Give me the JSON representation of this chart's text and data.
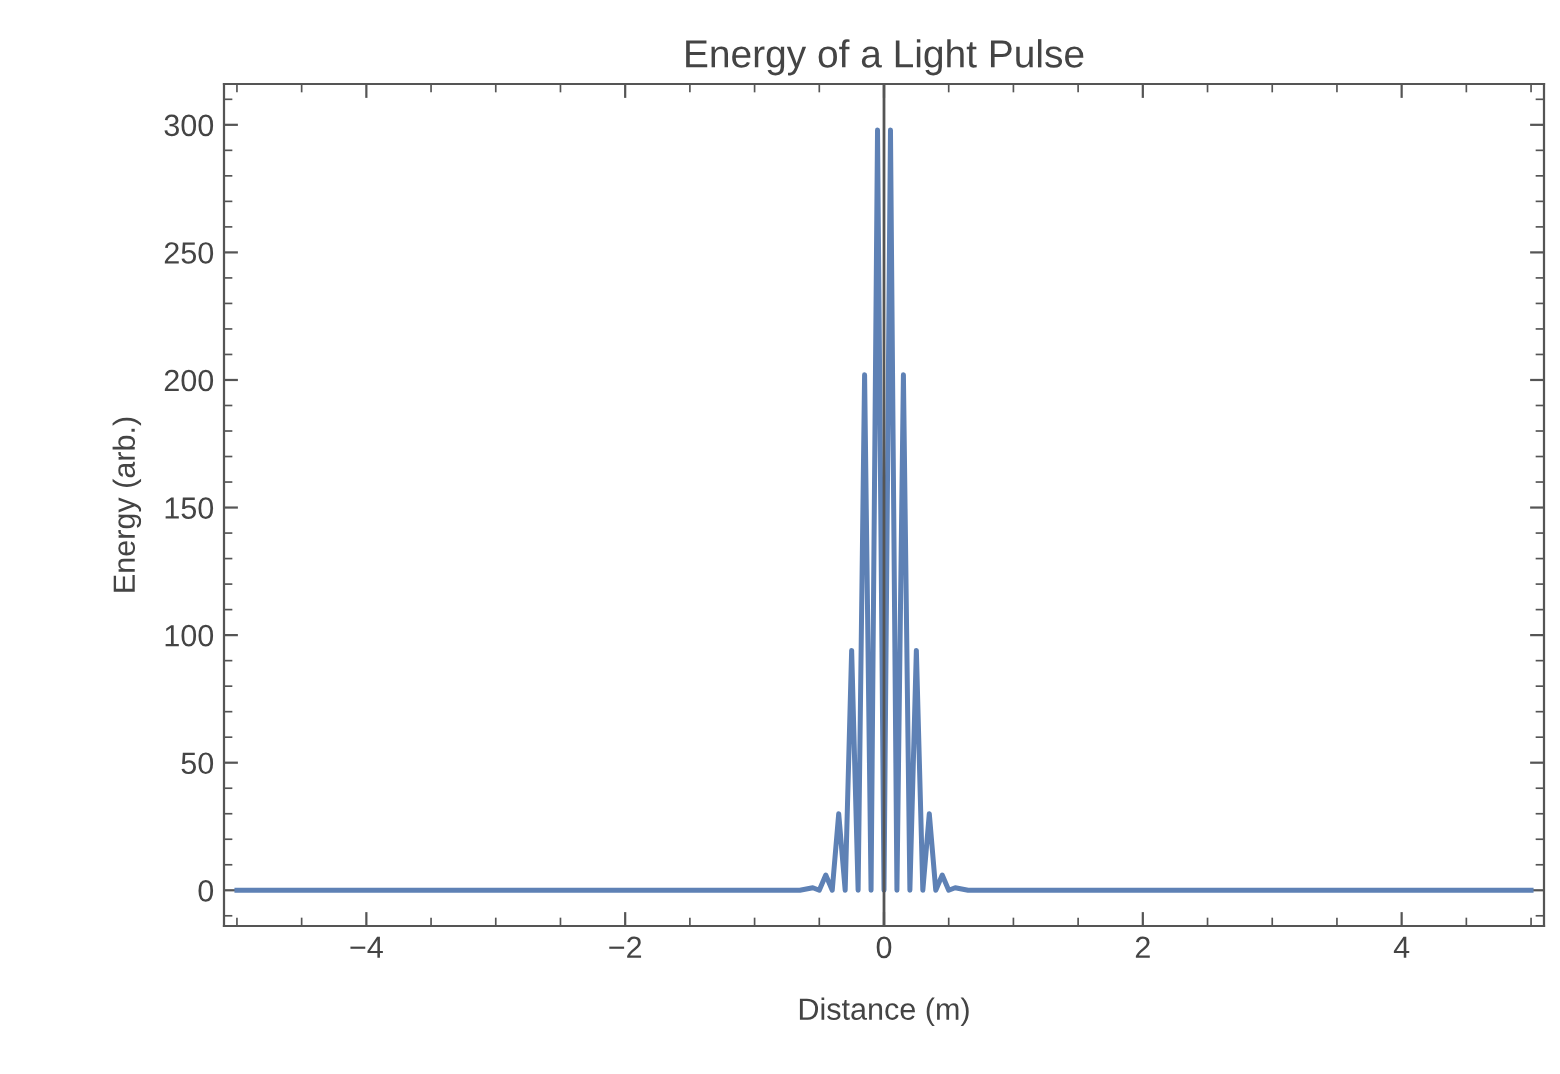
{
  "chart_data": {
    "type": "line",
    "title": "Energy of a Light Pulse",
    "xlabel": "Distance (m)",
    "ylabel": "Energy (arb.)",
    "series": [
      {
        "color": "#5e81b5",
        "x": [
          -5,
          -0.65,
          -0.55,
          -0.5,
          -0.45,
          -0.4,
          -0.35,
          -0.3,
          -0.25,
          -0.2,
          -0.15,
          -0.1,
          -0.05,
          0,
          0.05,
          0.1,
          0.15,
          0.2,
          0.25,
          0.3,
          0.35,
          0.4,
          0.45,
          0.5,
          0.55,
          0.65,
          5
        ],
        "values": [
          0,
          0,
          1,
          0,
          6,
          0,
          30,
          0,
          94,
          0,
          202,
          0,
          298,
          0,
          298,
          0,
          202,
          0,
          94,
          0,
          30,
          0,
          6,
          0,
          1,
          0,
          0
        ]
      }
    ],
    "xlim": [
      -5.1,
      5.1
    ],
    "xticks": [
      {
        "value": -4,
        "label": "−4"
      },
      {
        "value": -2,
        "label": "−2"
      },
      0,
      2,
      4
    ],
    "ylim": [
      -14,
      316
    ],
    "yticks": [
      0,
      50,
      100,
      150,
      200,
      250,
      300
    ],
    "ref_lines": [
      {
        "axis": "x",
        "value": 0,
        "color": "#555555"
      }
    ],
    "grid": false,
    "legend": false,
    "marker": "none",
    "line_style": "solid"
  }
}
